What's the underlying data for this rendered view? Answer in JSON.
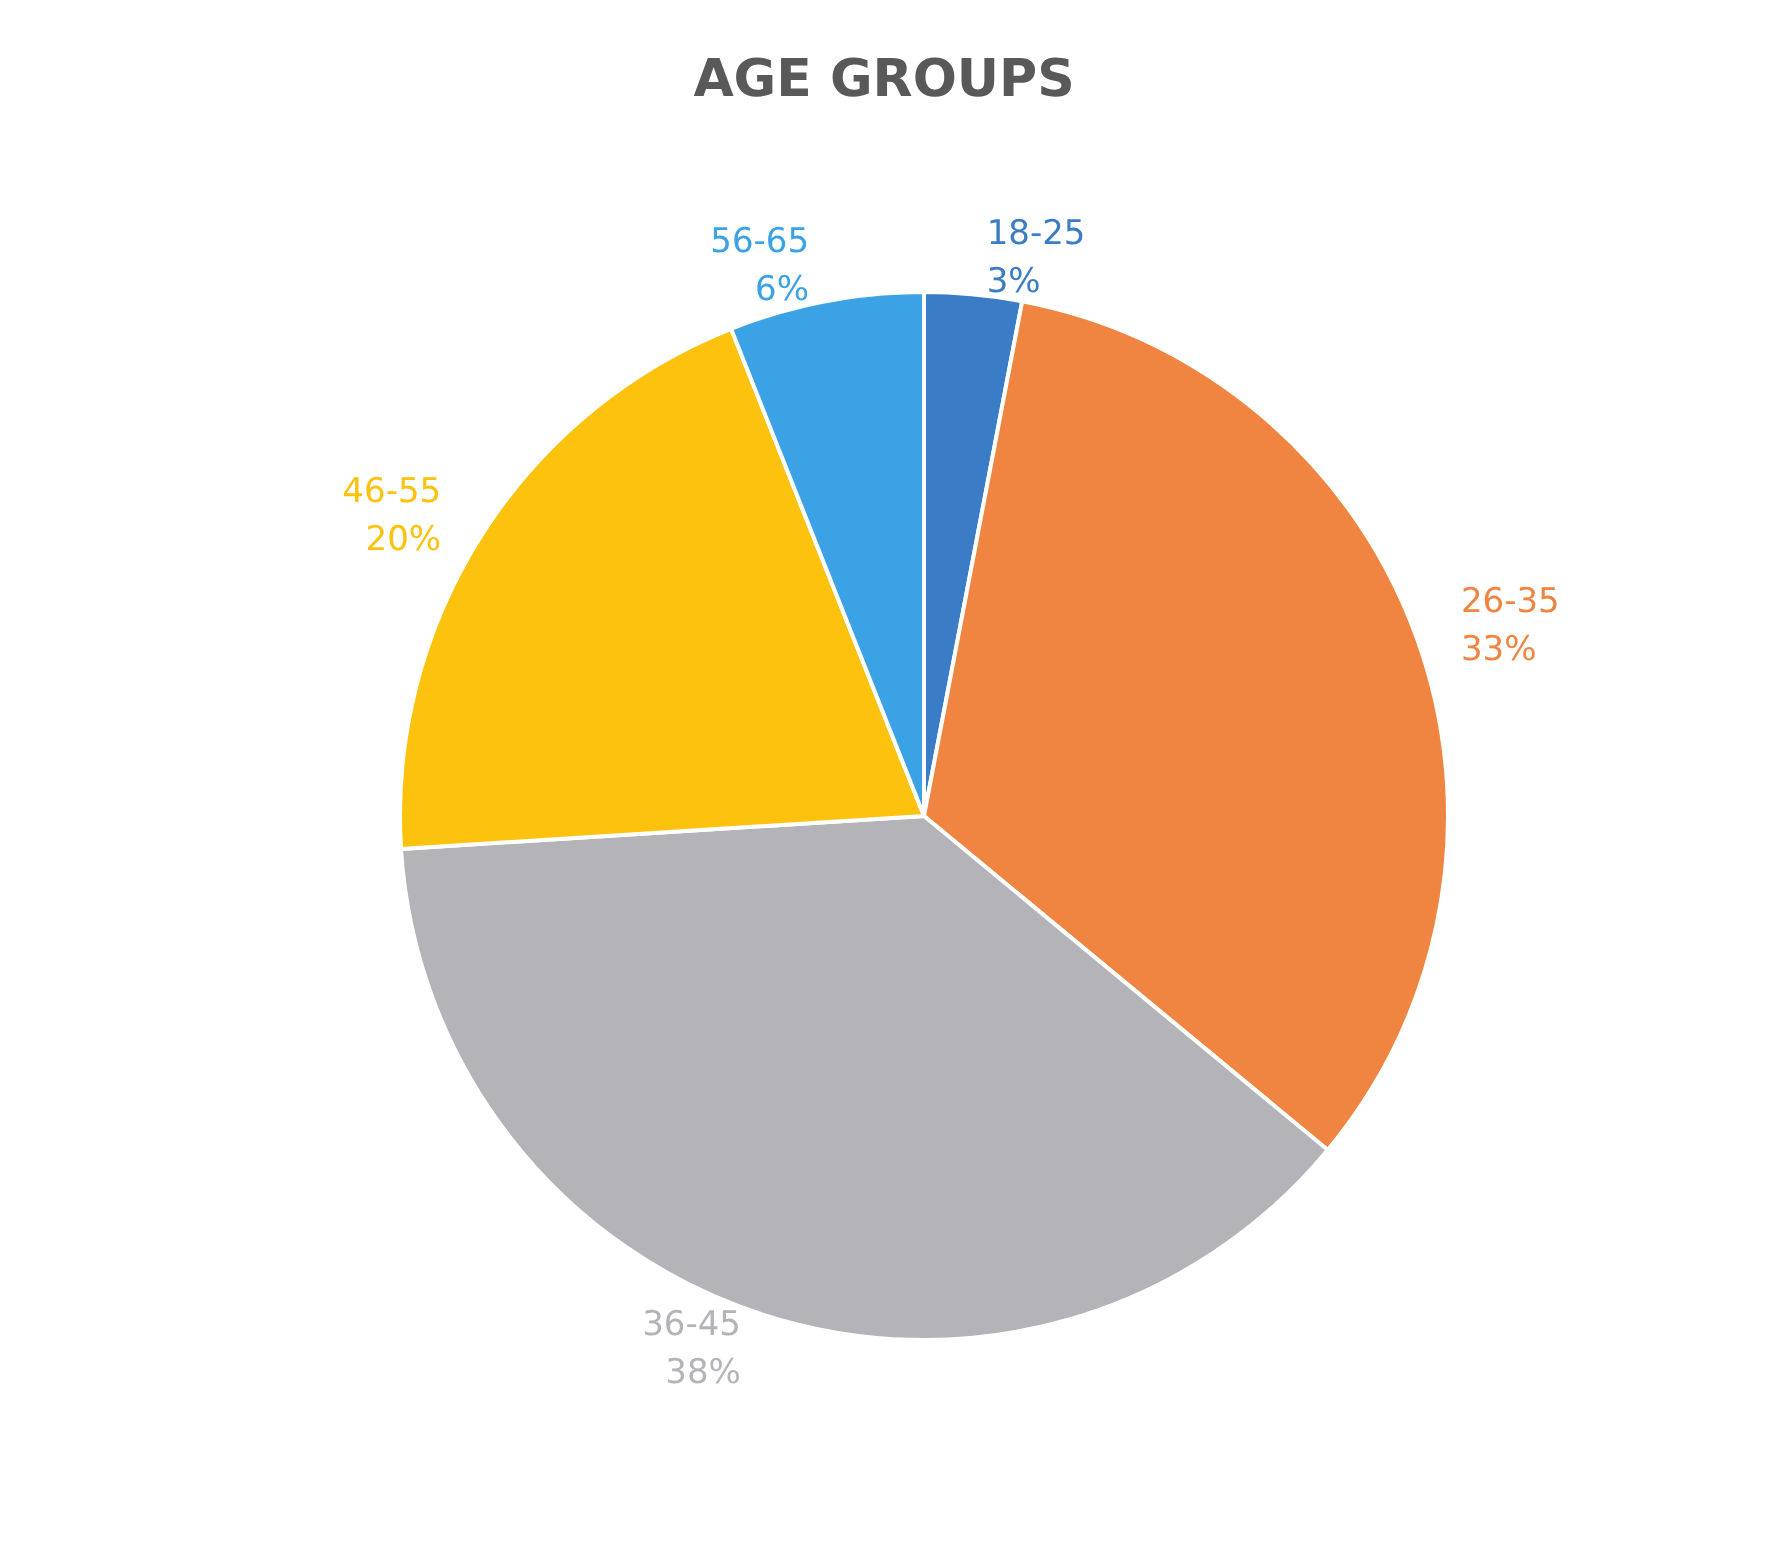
{
  "chart_data": {
    "type": "pie",
    "title": "AGE GROUPS",
    "categories": [
      "18-25",
      "26-35",
      "36-45",
      "46-55",
      "56-65"
    ],
    "values": [
      3,
      33,
      38,
      20,
      6
    ],
    "value_labels": [
      "3%",
      "33%",
      "38%",
      "20%",
      "6%"
    ],
    "colors": [
      "#3a7cc6",
      "#ef8540",
      "#b4b4b8",
      "#fcc20e",
      "#3ba3e5"
    ],
    "legend": false
  }
}
